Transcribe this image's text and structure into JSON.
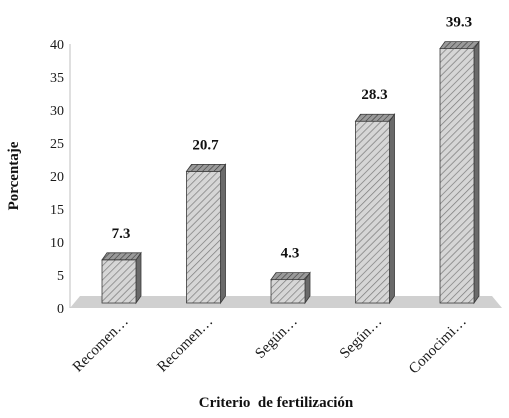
{
  "chart_data": {
    "type": "bar",
    "style": "3d-column-hatched",
    "categories": [
      "Recomen…",
      "Recomen…",
      "Según…",
      "Según…",
      "Conocimi…"
    ],
    "values": [
      7.3,
      20.7,
      4.3,
      28.3,
      39.3
    ],
    "data_labels": [
      "7.3",
      "20.7",
      "4.3",
      "28.3",
      "39.3"
    ],
    "xlabel": "Criterio  de fertilización",
    "ylabel": "Porcentaje",
    "ylim": [
      0,
      40
    ],
    "yticks": [
      "0",
      "5",
      "10",
      "15",
      "20",
      "25",
      "30",
      "35",
      "40"
    ],
    "grid": false,
    "legend": "none",
    "colors": {
      "bar_front": "#d6d6d6",
      "bar_hatch": "#7a7a7a",
      "bar_side": "#6a6a6a",
      "bar_top": "#8c8c8c",
      "floor": "#d0d0d0",
      "axis": "#bfbfbf"
    }
  }
}
